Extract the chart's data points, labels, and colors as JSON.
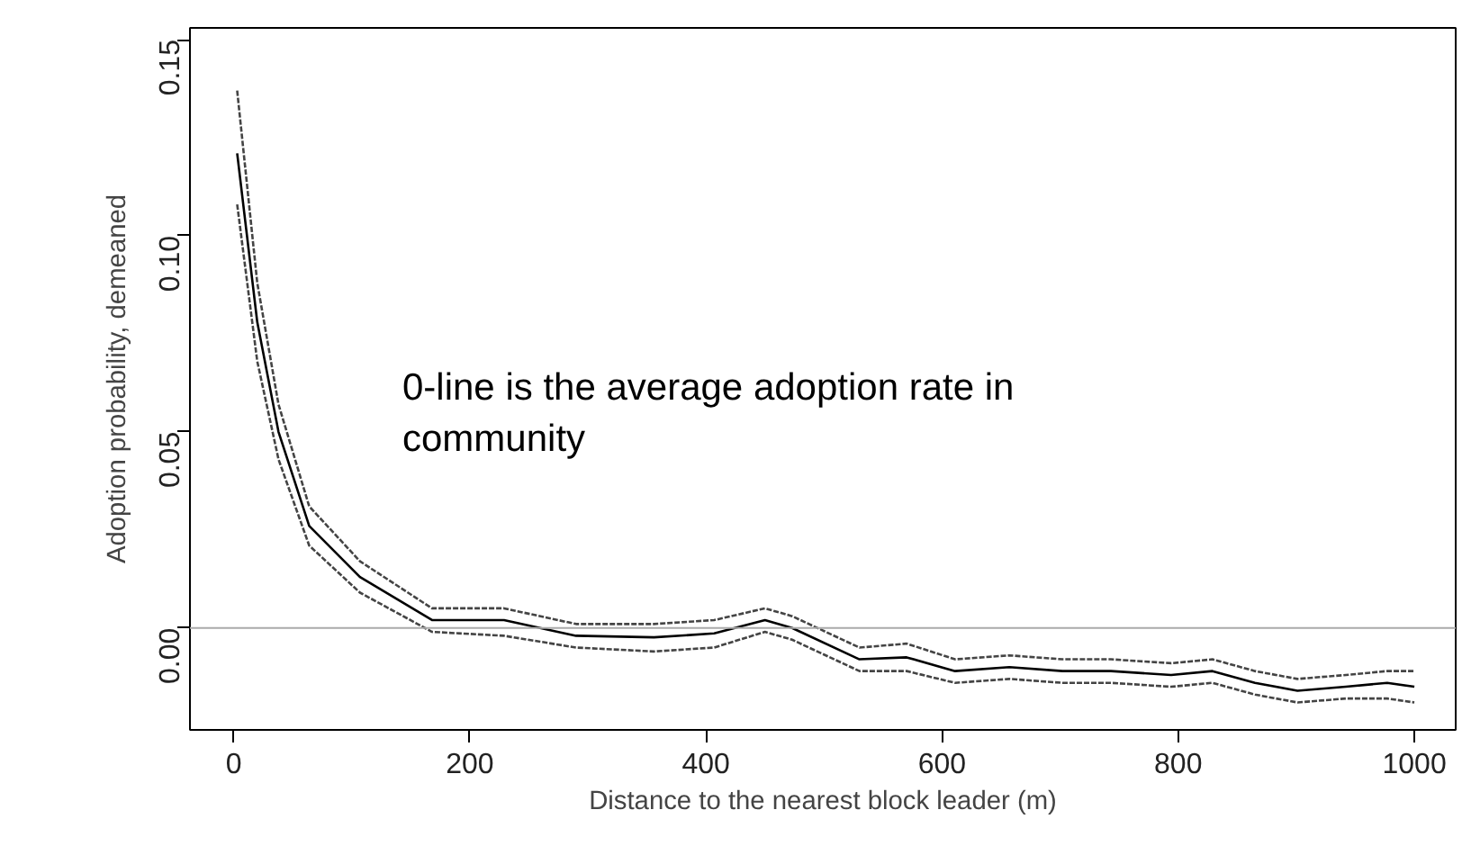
{
  "chart_data": {
    "type": "line",
    "xlabel": "Distance to the nearest block leader (m)",
    "ylabel": "Adoption probability, demeaned",
    "x": [
      3,
      20,
      38,
      64,
      107,
      168,
      229,
      290,
      356,
      407,
      450,
      473,
      530,
      570,
      611,
      657,
      702,
      743,
      794,
      829,
      865,
      901,
      942,
      977,
      1000
    ],
    "series": [
      {
        "color": "#000000",
        "line_style": "solid",
        "values": [
          0.121,
          0.078,
          0.05,
          0.026,
          0.013,
          0.002,
          0.002,
          -0.002,
          -0.0024,
          -0.0014,
          0.002,
          0,
          -0.008,
          -0.0075,
          -0.011,
          -0.01,
          -0.011,
          -0.011,
          -0.012,
          -0.011,
          -0.014,
          -0.016,
          -0.015,
          -0.014,
          -0.015
        ]
      },
      {
        "color": "#444444",
        "line_style": "dashed",
        "values": [
          0.137,
          0.088,
          0.057,
          0.031,
          0.017,
          0.005,
          0.005,
          0.001,
          0.001,
          0.002,
          0.005,
          0.003,
          -0.005,
          -0.004,
          -0.008,
          -0.007,
          -0.008,
          -0.008,
          -0.009,
          -0.008,
          -0.011,
          -0.013,
          -0.012,
          -0.011,
          -0.011
        ]
      },
      {
        "color": "#444444",
        "line_style": "dashed",
        "values": [
          0.108,
          0.068,
          0.043,
          0.021,
          0.009,
          -0.001,
          -0.002,
          -0.005,
          -0.006,
          -0.005,
          -0.001,
          -0.003,
          -0.011,
          -0.011,
          -0.014,
          -0.013,
          -0.014,
          -0.014,
          -0.015,
          -0.014,
          -0.017,
          -0.019,
          -0.018,
          -0.018,
          -0.019
        ]
      }
    ],
    "xlim": [
      -37,
      1035
    ],
    "ylim": [
      -0.026,
      0.153
    ],
    "xticks": [
      0,
      200,
      400,
      600,
      800,
      1000
    ],
    "yticks": [
      {
        "value": 0,
        "label": "0.00"
      },
      {
        "value": 0.05,
        "label": "0.05"
      },
      {
        "value": 0.1,
        "label": "0.10"
      },
      {
        "value": 0.15,
        "label": "0.15"
      }
    ],
    "ref_lines": [
      {
        "axis": "y",
        "value": 0,
        "color": "#aaaaaa"
      }
    ],
    "annotations": [
      "0-line is the average adoption rate in community"
    ]
  }
}
